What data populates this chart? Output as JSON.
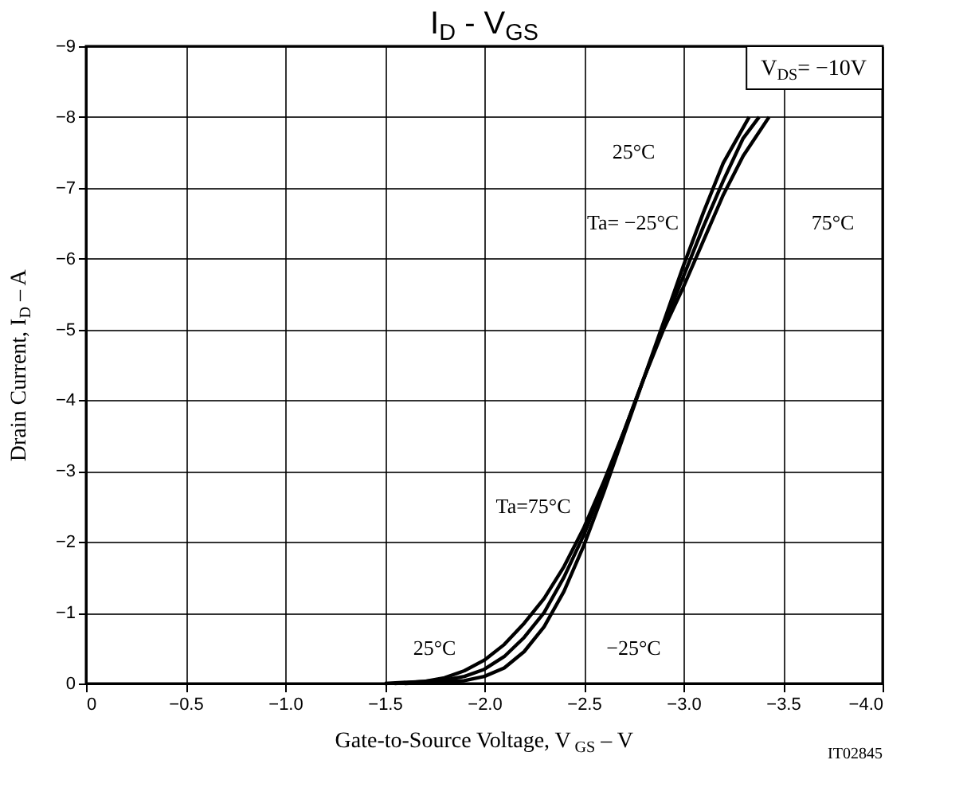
{
  "chart_data": {
    "type": "line",
    "title": "I$_{D}$ - V$_{GS}$",
    "xlabel": "Gate-to-Source Voltage, V$_{GS}$ – V",
    "ylabel": "Drain Current, I$_{D}$ – A",
    "xlim": [
      0,
      -4
    ],
    "xticks": [
      0,
      {
        "value": -0.5,
        "label": "−0.5"
      },
      {
        "value": -1,
        "label": "−1.0"
      },
      {
        "value": -1.5,
        "label": "−1.5"
      },
      {
        "value": -2,
        "label": "−2.0"
      },
      {
        "value": -2.5,
        "label": "−2.5"
      },
      {
        "value": -3,
        "label": "−3.0"
      },
      {
        "value": -3.5,
        "label": "−3.5"
      },
      {
        "value": -4,
        "label": "−4.0"
      }
    ],
    "ylim": [
      0,
      -9
    ],
    "yticks": [
      0,
      {
        "value": -1,
        "label": "−1"
      },
      {
        "value": -2,
        "label": "−2"
      },
      {
        "value": -3,
        "label": "−3"
      },
      {
        "value": -4,
        "label": "−4"
      },
      {
        "value": -5,
        "label": "−5"
      },
      {
        "value": -6,
        "label": "−6"
      },
      {
        "value": -7,
        "label": "−7"
      },
      {
        "value": -8,
        "label": "−8"
      },
      {
        "value": -9,
        "label": "−9"
      }
    ],
    "grid": true,
    "legend": false,
    "marker": "none",
    "line_style": "solid",
    "series": [
      {
        "color": "#000000",
        "x": [
          -1.5,
          -1.7,
          -1.8,
          -1.9,
          -2.0,
          -2.1,
          -2.2,
          -2.3,
          -2.4,
          -2.5,
          -2.6,
          -2.7,
          -2.8,
          -2.9,
          -3.0,
          -3.1,
          -3.2,
          -3.3,
          -3.43
        ],
        "values": [
          0,
          -0.03,
          -0.08,
          -0.18,
          -0.33,
          -0.55,
          -0.85,
          -1.2,
          -1.65,
          -2.2,
          -2.85,
          -3.55,
          -4.3,
          -5.0,
          -5.6,
          -6.25,
          -6.9,
          -7.45,
          -8
        ]
      },
      {
        "color": "#000000",
        "x": [
          -1.55,
          -1.8,
          -1.9,
          -2.0,
          -2.1,
          -2.2,
          -2.3,
          -2.4,
          -2.5,
          -2.6,
          -2.7,
          -2.8,
          -2.9,
          -3.0,
          -3.1,
          -3.2,
          -3.3,
          -3.38
        ],
        "values": [
          0,
          -0.05,
          -0.1,
          -0.2,
          -0.38,
          -0.65,
          -1.0,
          -1.5,
          -2.1,
          -2.8,
          -3.55,
          -4.3,
          -5.05,
          -5.75,
          -6.45,
          -7.1,
          -7.7,
          -8
        ]
      },
      {
        "color": "#000000",
        "x": [
          -1.6,
          -1.9,
          -2.0,
          -2.1,
          -2.2,
          -2.3,
          -2.4,
          -2.5,
          -2.6,
          -2.7,
          -2.8,
          -2.9,
          -3.0,
          -3.1,
          -3.2,
          -3.33
        ],
        "values": [
          0,
          -0.04,
          -0.1,
          -0.22,
          -0.45,
          -0.8,
          -1.3,
          -1.95,
          -2.7,
          -3.5,
          -4.3,
          -5.1,
          -5.9,
          -6.65,
          -7.35,
          -8
        ]
      }
    ],
    "annotations": [
      "V$_{DS}$= −10V",
      "Ta=75°C",
      "25°C",
      "−25°C",
      "25°C",
      "Ta= −25°C",
      "75°C",
      "IT02845"
    ]
  }
}
